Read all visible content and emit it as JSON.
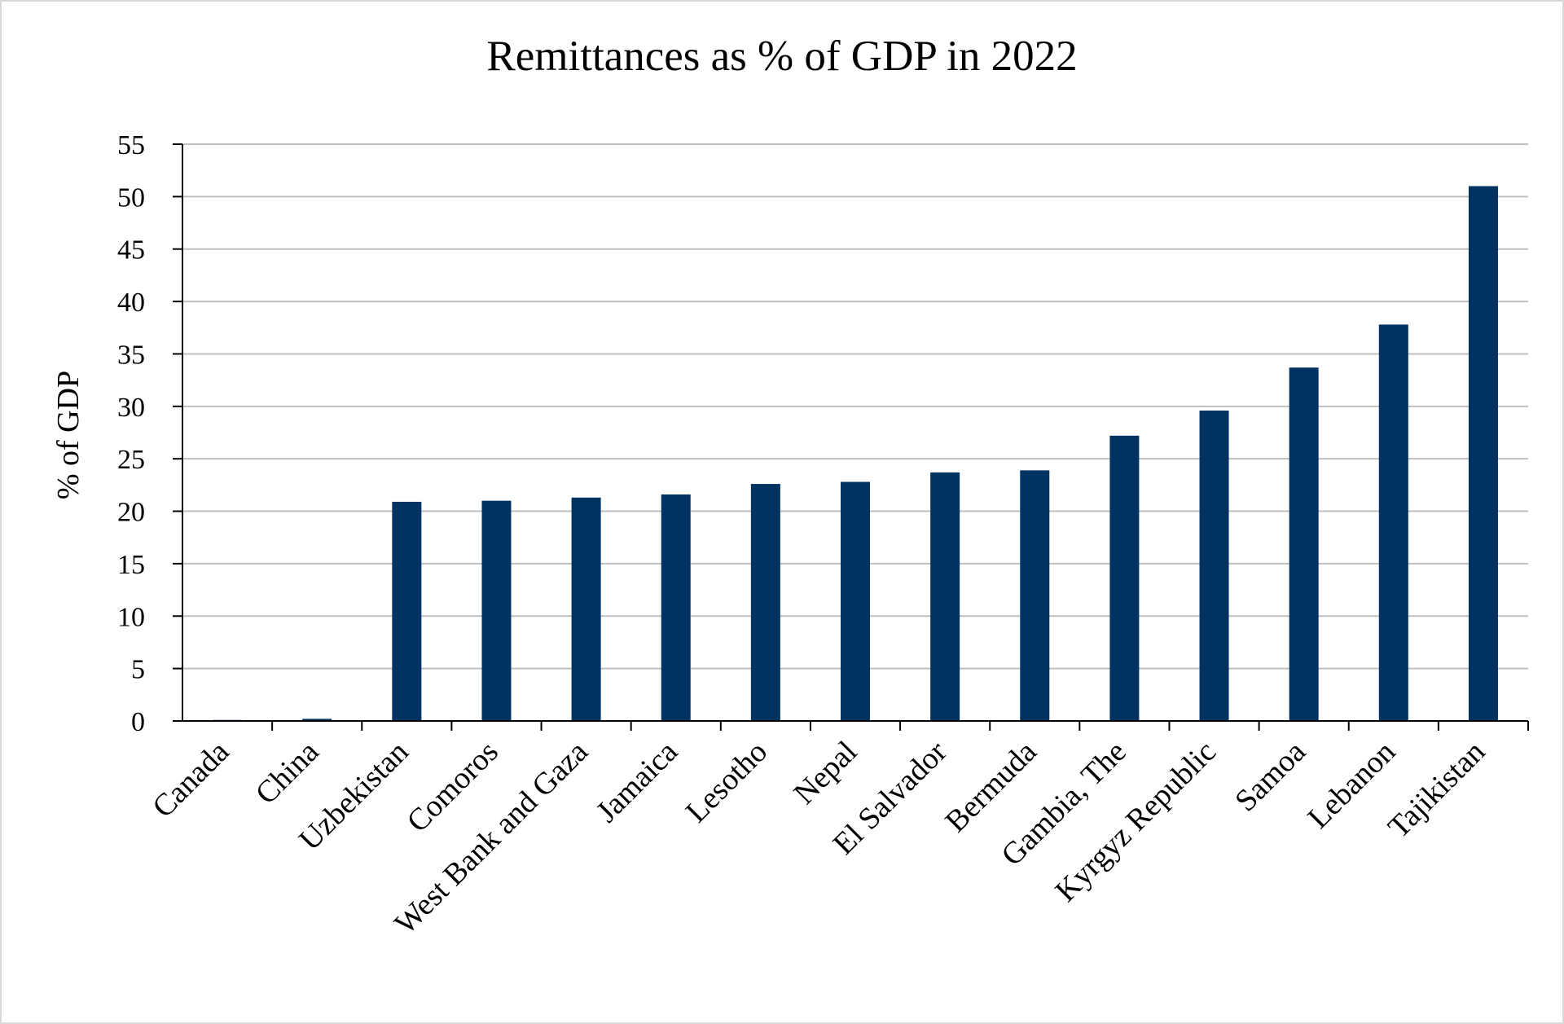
{
  "chart_data": {
    "type": "bar",
    "title": "Remittances as % of GDP in 2022",
    "xlabel": "",
    "ylabel": "% of GDP",
    "ylim": [
      0,
      55
    ],
    "yticks": [
      "0",
      "5",
      "10",
      "15",
      "20",
      "25",
      "30",
      "35",
      "40",
      "45",
      "50",
      "55"
    ],
    "grid": true,
    "categories": [
      "Canada",
      "China",
      "Uzbekistan",
      "Comoros",
      "West Bank and Gaza",
      "Jamaica",
      "Lesotho",
      "Nepal",
      "El Salvador",
      "Bermuda",
      "Gambia, The",
      "Kyrgyz Republic",
      "Samoa",
      "Lebanon",
      "Tajikistan"
    ],
    "values": [
      0.1,
      0.2,
      20.9,
      21.0,
      21.3,
      21.6,
      22.6,
      22.8,
      23.7,
      23.9,
      27.2,
      29.6,
      33.7,
      37.8,
      51.0
    ],
    "colors": {
      "bar": "#003262",
      "grid": "#bfbfbf",
      "axis": "#000000"
    }
  }
}
